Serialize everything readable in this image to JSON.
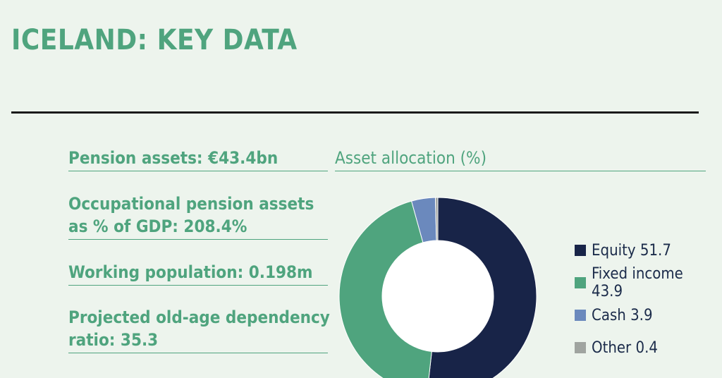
{
  "page": {
    "title": "ICELAND: KEY DATA"
  },
  "stats": [
    {
      "lines": [
        "Pension assets: €43.4bn"
      ]
    },
    {
      "lines": [
        "Occupational pension assets",
        "as % of GDP: 208.4%"
      ]
    },
    {
      "lines": [
        "Working population: 0.198m"
      ]
    },
    {
      "lines": [
        "Projected old-age dependency",
        "ratio: 35.3"
      ]
    }
  ],
  "chart_data": {
    "type": "pie",
    "variant": "donut",
    "title": "Asset allocation (%)",
    "categories": [
      "Equity",
      "Fixed income",
      "Cash",
      "Other"
    ],
    "values": [
      51.7,
      43.9,
      3.9,
      0.4
    ],
    "colors": [
      "#182448",
      "#4fa47e",
      "#6b89bd",
      "#a0a4a0"
    ],
    "legend": {
      "placement": "right",
      "labels": [
        "Equity 51.7",
        "Fixed income 43.9",
        "Cash 3.9",
        "Other 0.4"
      ]
    }
  }
}
